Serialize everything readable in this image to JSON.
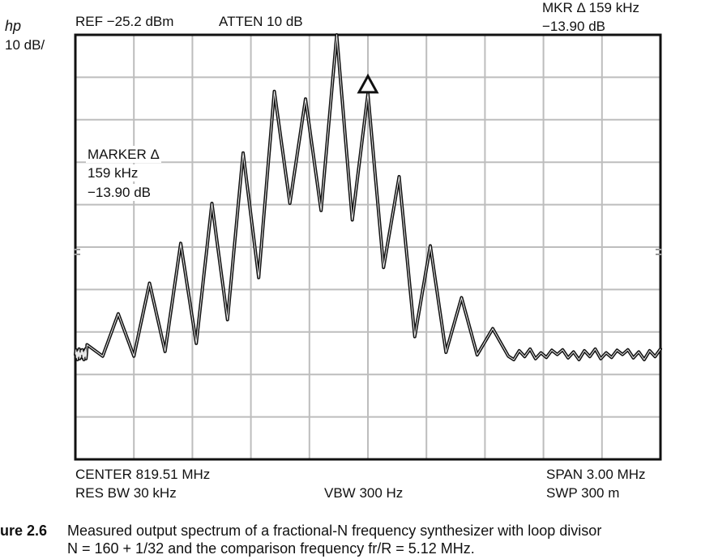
{
  "instrument": {
    "logo": "hp",
    "scale": "10  dB/",
    "ref": "REF −25.2 dBm",
    "atten": "ATTEN 10 dB",
    "mkr_line1": "MKR Δ 159 kHz",
    "mkr_line2": "−13.90 dB",
    "marker_line1": "MARKER Δ",
    "marker_line2": "159 kHz",
    "marker_line3": "−13.90 dB",
    "center": "CENTER 819.51 MHz",
    "res_bw": "RES BW  30 kHz",
    "vbw": "VBW 300 Hz",
    "span": "SPAN 3.00 MHz",
    "swp": "SWP 300 m"
  },
  "caption": {
    "number": "ure 2.6",
    "line1": "Measured output spectrum of a fractional-N frequency synthesizer with loop divisor",
    "line2": "N = 160 + 1/32 and the comparison frequency fr/R = 5.12 MHz."
  },
  "chart_data": {
    "type": "line",
    "title": "",
    "xlabel": "",
    "ylabel": "",
    "x_unit": "MHz",
    "y_unit": "dBm",
    "xlim": [
      818.01,
      821.01
    ],
    "ylim": [
      -125.2,
      -25.2
    ],
    "grid": true,
    "grid_divisions": {
      "x": 10,
      "y": 10
    },
    "marker_delta": {
      "freq_offset_kHz": 159,
      "delta_dB": -13.9
    },
    "spurs": {
      "spacing_kHz": 160,
      "peaks": [
        {
          "offset_kHz": -1440,
          "level_dBm": -98.2
        },
        {
          "offset_kHz": -1280,
          "level_dBm": -90.9
        },
        {
          "offset_kHz": -1120,
          "level_dBm": -83.7
        },
        {
          "offset_kHz": -960,
          "level_dBm": -74.3
        },
        {
          "offset_kHz": -800,
          "level_dBm": -64.9
        },
        {
          "offset_kHz": -640,
          "level_dBm": -53.0
        },
        {
          "offset_kHz": -480,
          "level_dBm": -38.5
        },
        {
          "offset_kHz": -320,
          "level_dBm": -40.3
        },
        {
          "offset_kHz": -160,
          "level_dBm": -25.2
        },
        {
          "offset_kHz": 0,
          "level_dBm": -39.1
        },
        {
          "offset_kHz": 160,
          "level_dBm": -58.6
        },
        {
          "offset_kHz": 320,
          "level_dBm": -74.9
        },
        {
          "offset_kHz": 480,
          "level_dBm": -87.1
        },
        {
          "offset_kHz": 640,
          "level_dBm": -94.4
        }
      ],
      "valleys": [
        {
          "offset_kHz": -1360,
          "level_dBm": -100.9
        },
        {
          "offset_kHz": -1200,
          "level_dBm": -100.9
        },
        {
          "offset_kHz": -1040,
          "level_dBm": -99.8
        },
        {
          "offset_kHz": -880,
          "level_dBm": -97.9
        },
        {
          "offset_kHz": -720,
          "level_dBm": -92.3
        },
        {
          "offset_kHz": -560,
          "level_dBm": -82.4
        },
        {
          "offset_kHz": -400,
          "level_dBm": -64.9
        },
        {
          "offset_kHz": -240,
          "level_dBm": -66.6
        },
        {
          "offset_kHz": -80,
          "level_dBm": -68.8
        },
        {
          "offset_kHz": 80,
          "level_dBm": -80.0
        },
        {
          "offset_kHz": 240,
          "level_dBm": -96.3
        },
        {
          "offset_kHz": 400,
          "level_dBm": -100.0
        },
        {
          "offset_kHz": 560,
          "level_dBm": -100.6
        },
        {
          "offset_kHz": 720,
          "level_dBm": -100.9
        }
      ],
      "noise_floor_dBm": -100.5
    }
  }
}
